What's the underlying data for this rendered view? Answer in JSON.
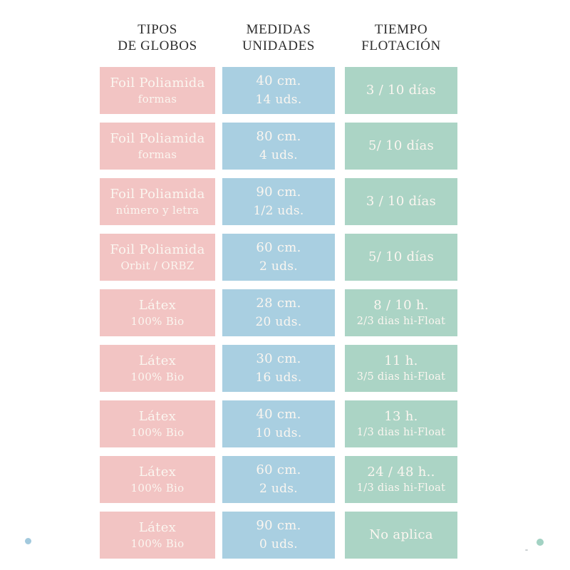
{
  "page": {
    "background": "#ffffff"
  },
  "colors": {
    "pink": "#f2c4c3",
    "blue": "#a9cfe1",
    "green": "#abd4c5",
    "header_text": "#2d2d2d",
    "cell_text": "#fbf6f0",
    "dot_blue": "#a2c9dd",
    "dot_green": "#a2d2c3",
    "speck": "#c9ced0"
  },
  "chart_data": {
    "type": "table",
    "title": "",
    "columns": [
      {
        "line1": "TIPOS",
        "line2": "DE GLOBOS"
      },
      {
        "line1": "MEDIDAS",
        "line2": "UNIDADES"
      },
      {
        "line1": "TIEMPO",
        "line2": "FLOTACIÓN"
      }
    ],
    "rows": [
      {
        "tipo": [
          "Foil Poliamida",
          "formas"
        ],
        "medida": [
          "40 cm.",
          "14 uds."
        ],
        "tiempo": [
          "3 / 10 días",
          ""
        ]
      },
      {
        "tipo": [
          "Foil Poliamida",
          "formas"
        ],
        "medida": [
          "80 cm.",
          "4 uds."
        ],
        "tiempo": [
          "5/ 10 días",
          ""
        ]
      },
      {
        "tipo": [
          "Foil Poliamida",
          "número y letra"
        ],
        "medida": [
          "90 cm.",
          "1/2 uds."
        ],
        "tiempo": [
          "3 / 10 días",
          ""
        ]
      },
      {
        "tipo": [
          "Foil Poliamida",
          "Orbit / ORBZ"
        ],
        "medida": [
          "60 cm.",
          "2 uds."
        ],
        "tiempo": [
          "5/ 10 días",
          ""
        ]
      },
      {
        "tipo": [
          "Látex",
          "100% Bio"
        ],
        "medida": [
          "28 cm.",
          "20 uds."
        ],
        "tiempo": [
          "8 / 10 h.",
          "2/3 dias hi-Float"
        ]
      },
      {
        "tipo": [
          "Látex",
          "100% Bio"
        ],
        "medida": [
          "30 cm.",
          "16 uds."
        ],
        "tiempo": [
          "11 h.",
          "3/5 dias hi-Float"
        ]
      },
      {
        "tipo": [
          "Látex",
          "100% Bio"
        ],
        "medida": [
          "40 cm.",
          "10 uds."
        ],
        "tiempo": [
          "13 h.",
          "1/3 dias hi-Float"
        ]
      },
      {
        "tipo": [
          "Látex",
          "100% Bio"
        ],
        "medida": [
          "60 cm.",
          "2 uds."
        ],
        "tiempo": [
          "24 / 48 h..",
          "1/3 dias hi-Float"
        ]
      },
      {
        "tipo": [
          "Látex",
          "100% Bio"
        ],
        "medida": [
          "90 cm.",
          "0 uds."
        ],
        "tiempo": [
          "No aplica",
          ""
        ]
      }
    ]
  }
}
